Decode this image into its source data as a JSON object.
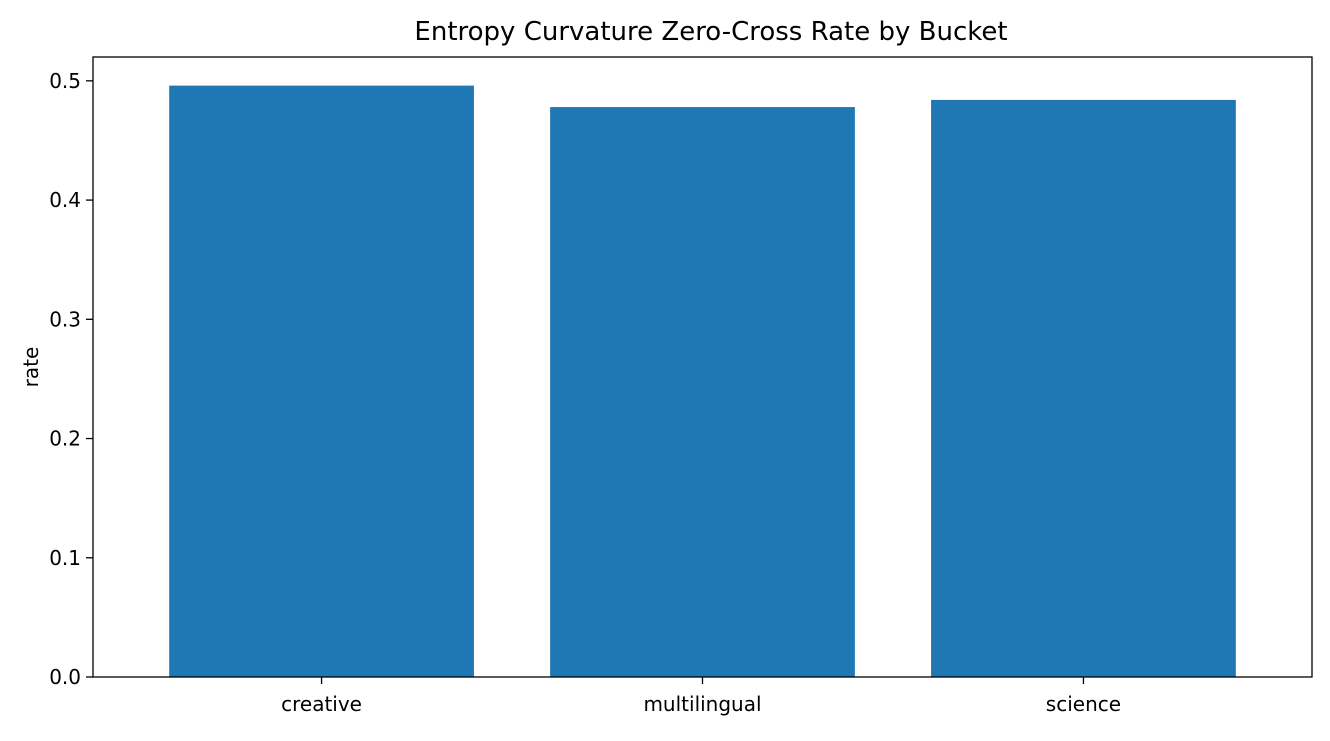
{
  "chart_data": {
    "type": "bar",
    "title": "Entropy Curvature Zero-Cross Rate by Bucket",
    "xlabel": "",
    "ylabel": "rate",
    "categories": [
      "creative",
      "multilingual",
      "science"
    ],
    "values": [
      0.496,
      0.478,
      0.484
    ],
    "ylim": [
      0,
      0.52
    ],
    "yticks": [
      0.0,
      0.1,
      0.2,
      0.3,
      0.4,
      0.5
    ],
    "ytick_labels": [
      "0.0",
      "0.1",
      "0.2",
      "0.3",
      "0.4",
      "0.5"
    ],
    "grid": false,
    "legend": "none",
    "bar_color": "#1f77b4"
  }
}
